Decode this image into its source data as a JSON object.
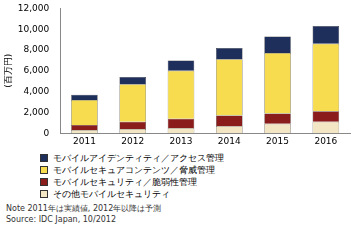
{
  "chart_data": {
    "type": "bar",
    "stacked": true,
    "y_label": "(百万円)",
    "categories": [
      "2011",
      "2012",
      "2013",
      "2014",
      "2015",
      "2016"
    ],
    "series": [
      {
        "name": "その他モバイルセキュリティ",
        "color": "#f2e6c4",
        "values": [
          300,
          400,
          500,
          700,
          900,
          1100
        ]
      },
      {
        "name": "モバイルセキュリティ／脆弱性管理",
        "color": "#8b1c1c",
        "values": [
          500,
          700,
          900,
          1000,
          1000,
          1000
        ]
      },
      {
        "name": "モバイルセキュアコンテンツ／脅威管理",
        "color": "#f7dc4f",
        "values": [
          2400,
          3600,
          4600,
          5400,
          5800,
          6500
        ]
      },
      {
        "name": "モバイルアイデンティティ／アクセス管理",
        "color": "#1f2f5c",
        "values": [
          500,
          700,
          1000,
          1100,
          1600,
          1700
        ]
      }
    ],
    "ylim": [
      0,
      12000
    ],
    "yticks": [
      0,
      {
        "value": 2000,
        "label": "2,000"
      },
      {
        "value": 4000,
        "label": "4,000"
      },
      {
        "value": 6000,
        "label": "6,000"
      },
      {
        "value": 8000,
        "label": "8,000"
      },
      {
        "value": 10000,
        "label": "10,000"
      },
      {
        "value": 12000,
        "label": "12,000"
      }
    ],
    "grid": false,
    "legend": "bottom",
    "annotations": [
      "Note 2011年は実績値, 2012年以降は予測",
      "Source: IDC Japan, 10/2012"
    ]
  }
}
